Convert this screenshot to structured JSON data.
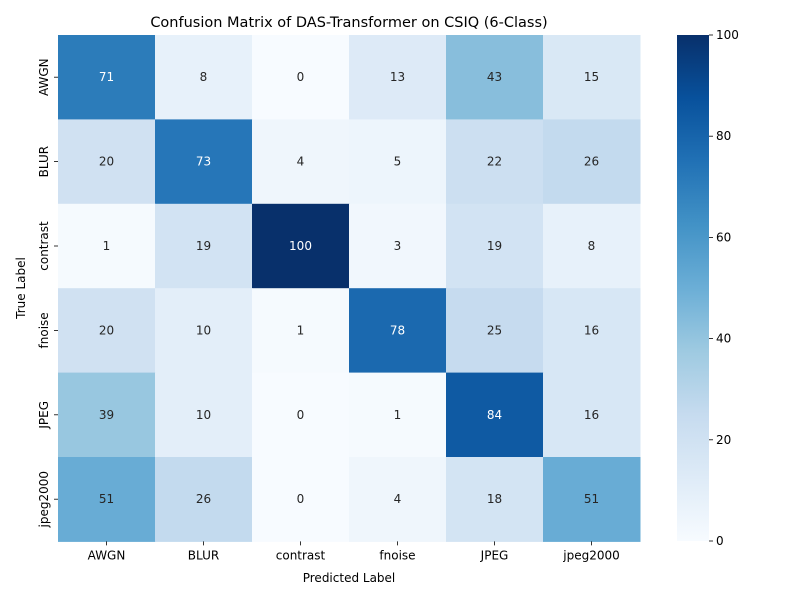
{
  "chart_data": {
    "type": "heatmap",
    "title": "Confusion Matrix of DAS-Transformer on CSIQ (6-Class)",
    "xlabel": "Predicted Label",
    "ylabel": "True Label",
    "x_categories": [
      "AWGN",
      "BLUR",
      "contrast",
      "fnoise",
      "JPEG",
      "jpeg2000"
    ],
    "y_categories": [
      "AWGN",
      "BLUR",
      "contrast",
      "fnoise",
      "JPEG",
      "jpeg2000"
    ],
    "values": [
      [
        71,
        8,
        0,
        13,
        43,
        15
      ],
      [
        20,
        73,
        4,
        5,
        22,
        26
      ],
      [
        1,
        19,
        100,
        3,
        19,
        8
      ],
      [
        20,
        10,
        1,
        78,
        25,
        16
      ],
      [
        39,
        10,
        0,
        1,
        84,
        16
      ],
      [
        51,
        26,
        0,
        4,
        18,
        51
      ]
    ],
    "colorbar": {
      "min": 0,
      "max": 100,
      "ticks": [
        0,
        20,
        40,
        60,
        80,
        100
      ],
      "colormap": "Blues"
    }
  }
}
